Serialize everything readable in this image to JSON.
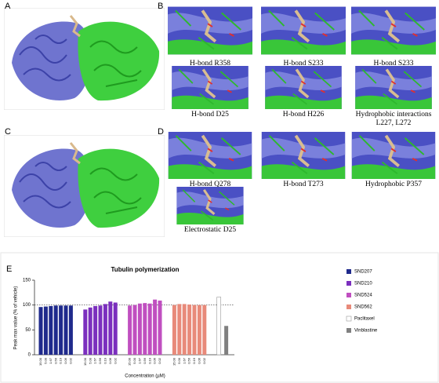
{
  "panels": {
    "A": "A",
    "B": "B",
    "C": "C",
    "D": "D",
    "E": "E",
    "B_captions": [
      [
        "H-bond R358"
      ],
      [
        "H-bond S233"
      ],
      [
        "H-bond S233"
      ],
      [
        "H-bond D25"
      ],
      [
        "H-bond H226"
      ],
      [
        "Hydrophobic interactions",
        "L227, L272"
      ]
    ],
    "D_captions": [
      [
        "H-bond Q278"
      ],
      [
        "H-bond T273"
      ],
      [
        "Hydrophobic P357"
      ],
      [
        "Electrostatic D25"
      ]
    ]
  },
  "chart_data": {
    "type": "bar",
    "title": "Tubulin polymerization",
    "y_label": "Peak max value (% of vehicle)",
    "x_label": "Concentration (µM)",
    "categories": [
      "15.00",
      "5.00",
      "1.67",
      "0.56",
      "0.19",
      "0.06",
      "0.02",
      "15.00",
      "5.00",
      "1.67",
      "0.56",
      "0.19",
      "0.06",
      "0.02",
      "15.00",
      "5.00",
      "1.67",
      "0.56",
      "0.19",
      "0.06",
      "0.02",
      "15.00",
      "5.00",
      "1.67",
      "0.56",
      "0.19",
      "0.06",
      "0.02",
      null,
      null
    ],
    "series": [
      {
        "name": "SND207",
        "color": "#1f2a8c",
        "values": [
          96,
          97,
          98,
          99,
          99,
          99,
          99,
          null,
          null,
          null,
          null,
          null,
          null,
          null,
          null,
          null,
          null,
          null,
          null,
          null,
          null,
          null,
          null,
          null,
          null,
          null,
          null,
          null,
          null,
          null
        ]
      },
      {
        "name": "SND210",
        "color": "#7b2fbe",
        "values": [
          null,
          null,
          null,
          null,
          null,
          null,
          null,
          91,
          95,
          98,
          99,
          102,
          107,
          105,
          null,
          null,
          null,
          null,
          null,
          null,
          null,
          null,
          null,
          null,
          null,
          null,
          null,
          null,
          null,
          null
        ]
      },
      {
        "name": "SND524",
        "color": "#c04fc0",
        "values": [
          null,
          null,
          null,
          null,
          null,
          null,
          null,
          null,
          null,
          null,
          null,
          null,
          null,
          null,
          99,
          100,
          103,
          104,
          103,
          111,
          109,
          null,
          null,
          null,
          null,
          null,
          null,
          null,
          null,
          null
        ]
      },
      {
        "name": "SND562",
        "color": "#e88a7a",
        "values": [
          null,
          null,
          null,
          null,
          null,
          null,
          null,
          null,
          null,
          null,
          null,
          null,
          null,
          null,
          null,
          null,
          null,
          null,
          null,
          null,
          null,
          100,
          102,
          102,
          101,
          100,
          100,
          100,
          null,
          null
        ]
      },
      {
        "name": "Paclitaxel",
        "color": "#ffffff",
        "values": [
          null,
          null,
          null,
          null,
          null,
          null,
          null,
          null,
          null,
          null,
          null,
          null,
          null,
          null,
          null,
          null,
          null,
          null,
          null,
          null,
          null,
          null,
          null,
          null,
          null,
          null,
          null,
          null,
          116,
          null
        ]
      },
      {
        "name": "Vinblastine",
        "color": "#808080",
        "values": [
          null,
          null,
          null,
          null,
          null,
          null,
          null,
          null,
          null,
          null,
          null,
          null,
          null,
          null,
          null,
          null,
          null,
          null,
          null,
          null,
          null,
          null,
          null,
          null,
          null,
          null,
          null,
          null,
          null,
          58
        ]
      }
    ],
    "ylim": [
      0,
      150
    ],
    "yticks": [
      0,
      50,
      100,
      150
    ],
    "reference_line": 100,
    "legend": "right"
  }
}
